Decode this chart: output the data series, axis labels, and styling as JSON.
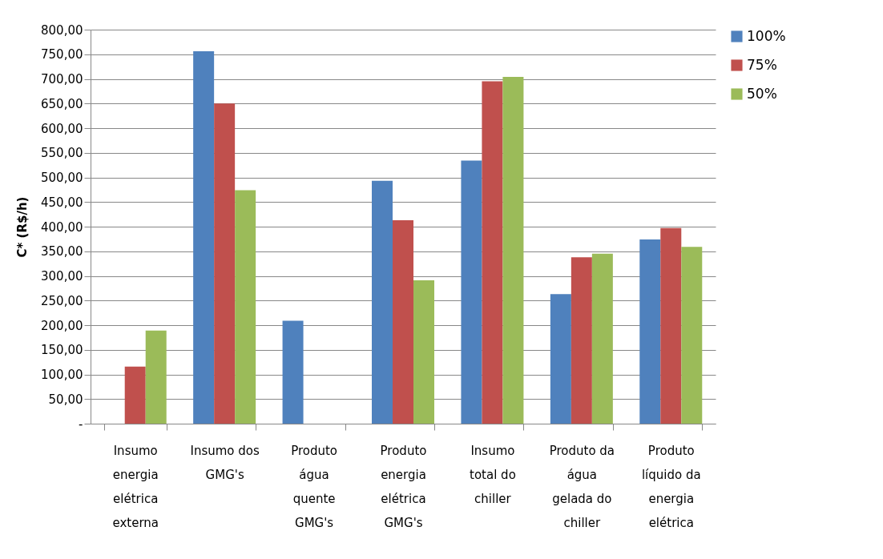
{
  "chart_data": {
    "type": "bar",
    "ylabel": "C* (R$/h)",
    "categories": [
      "Insumo energia elétrica externa",
      "Insumo dos GMG's",
      "Produto água quente GMG's",
      "Produto energia elétrica GMG's",
      "Insumo total do chiller",
      "Produto da água gelada do chiller",
      "Produto líquido da energia elétrica"
    ],
    "series": [
      {
        "name": "100%",
        "color": "#4f81bd",
        "values": [
          null,
          756,
          209,
          493,
          534,
          263,
          374
        ]
      },
      {
        "name": "75%",
        "color": "#c0504d",
        "values": [
          116,
          650,
          null,
          413,
          695,
          338,
          397
        ]
      },
      {
        "name": "50%",
        "color": "#9bbb59",
        "values": [
          189,
          474,
          null,
          291,
          704,
          345,
          359
        ]
      }
    ],
    "ylim": [
      0,
      800
    ],
    "yticks": [
      {
        "value": 0,
        "label": "-"
      },
      {
        "value": 50,
        "label": "50,00"
      },
      {
        "value": 100,
        "label": "100,00"
      },
      {
        "value": 150,
        "label": "150,00"
      },
      {
        "value": 200,
        "label": "200,00"
      },
      {
        "value": 250,
        "label": "250,00"
      },
      {
        "value": 300,
        "label": "300,00"
      },
      {
        "value": 350,
        "label": "350,00"
      },
      {
        "value": 400,
        "label": "400,00"
      },
      {
        "value": 450,
        "label": "450,00"
      },
      {
        "value": 500,
        "label": "500,00"
      },
      {
        "value": 550,
        "label": "550,00"
      },
      {
        "value": 600,
        "label": "600,00"
      },
      {
        "value": 650,
        "label": "650,00"
      },
      {
        "value": 700,
        "label": "700,00"
      },
      {
        "value": 750,
        "label": "750,00"
      },
      {
        "value": 800,
        "label": "800,00"
      }
    ],
    "grid": "y",
    "legend": "right"
  }
}
